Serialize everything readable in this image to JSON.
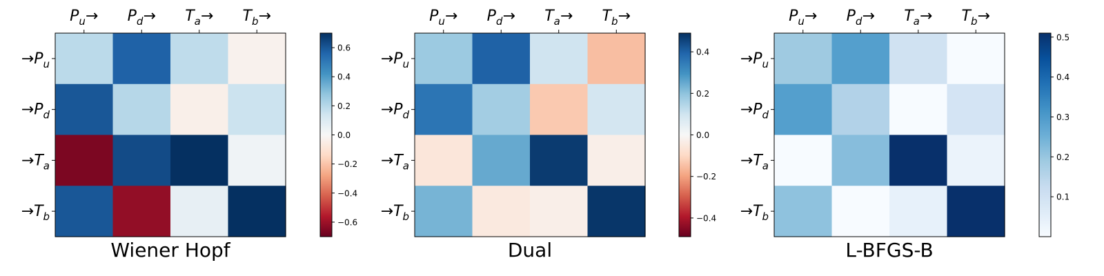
{
  "chart_data": [
    {
      "type": "heatmap",
      "title": "Wiener Hopf",
      "x_tick_labels": [
        {
          "base": "P",
          "sub": "u",
          "arrow": "→"
        },
        {
          "base": "P",
          "sub": "d",
          "arrow": "→"
        },
        {
          "base": "T",
          "sub": "a",
          "arrow": "→"
        },
        {
          "base": "T",
          "sub": "b",
          "arrow": "→"
        }
      ],
      "y_tick_labels": [
        {
          "base": "P",
          "sub": "u",
          "arrow": "→"
        },
        {
          "base": "P",
          "sub": "d",
          "arrow": "→"
        },
        {
          "base": "T",
          "sub": "a",
          "arrow": "→"
        },
        {
          "base": "T",
          "sub": "b",
          "arrow": "→"
        }
      ],
      "values": [
        [
          0.19,
          0.57,
          0.18,
          -0.03
        ],
        [
          0.6,
          0.2,
          -0.04,
          0.15
        ],
        [
          -0.66,
          0.63,
          0.7,
          0.03
        ],
        [
          0.6,
          -0.62,
          0.06,
          0.7
        ]
      ],
      "colormap": "RdBu",
      "vlim": [
        -0.7,
        0.7
      ],
      "colorbar_ticks": [
        -0.6,
        -0.4,
        -0.2,
        0.0,
        0.2,
        0.4,
        0.6
      ],
      "colorbar_tick_labels": [
        "−0.6",
        "−0.4",
        "−0.2",
        "0.0",
        "0.2",
        "0.4",
        "0.6"
      ]
    },
    {
      "type": "heatmap",
      "title": "Dual",
      "x_tick_labels": [
        {
          "base": "P",
          "sub": "u",
          "arrow": "→"
        },
        {
          "base": "P",
          "sub": "d",
          "arrow": "→"
        },
        {
          "base": "T",
          "sub": "a",
          "arrow": "→"
        },
        {
          "base": "T",
          "sub": "b",
          "arrow": "→"
        }
      ],
      "y_tick_labels": [
        {
          "base": "P",
          "sub": "u",
          "arrow": "→"
        },
        {
          "base": "P",
          "sub": "d",
          "arrow": "→"
        },
        {
          "base": "T",
          "sub": "a",
          "arrow": "→"
        },
        {
          "base": "T",
          "sub": "b",
          "arrow": "→"
        }
      ],
      "values": [
        [
          0.18,
          0.4,
          0.1,
          -0.15
        ],
        [
          0.36,
          0.17,
          -0.13,
          0.09
        ],
        [
          -0.06,
          0.25,
          0.47,
          -0.03
        ],
        [
          0.23,
          -0.05,
          -0.03,
          0.48
        ]
      ],
      "colormap": "RdBu",
      "vlim": [
        -0.49,
        0.49
      ],
      "colorbar_ticks": [
        -0.4,
        -0.2,
        0.0,
        0.2,
        0.4
      ],
      "colorbar_tick_labels": [
        "−0.4",
        "−0.2",
        "0.0",
        "0.2",
        "0.4"
      ]
    },
    {
      "type": "heatmap",
      "title": "L-BFGS-B",
      "x_tick_labels": [
        {
          "base": "P",
          "sub": "u",
          "arrow": "→"
        },
        {
          "base": "P",
          "sub": "d",
          "arrow": "→"
        },
        {
          "base": "T",
          "sub": "a",
          "arrow": "→"
        },
        {
          "base": "T",
          "sub": "b",
          "arrow": "→"
        }
      ],
      "y_tick_labels": [
        {
          "base": "P",
          "sub": "u",
          "arrow": "→"
        },
        {
          "base": "P",
          "sub": "d",
          "arrow": "→"
        },
        {
          "base": "T",
          "sub": "a",
          "arrow": "→"
        },
        {
          "base": "T",
          "sub": "b",
          "arrow": "→"
        }
      ],
      "values": [
        [
          0.19,
          0.29,
          0.1,
          0.0
        ],
        [
          0.29,
          0.16,
          0.0,
          0.09
        ],
        [
          0.0,
          0.22,
          0.51,
          0.03
        ],
        [
          0.21,
          0.0,
          0.04,
          0.51
        ]
      ],
      "colormap": "Blues",
      "vlim": [
        0.0,
        0.51
      ],
      "colorbar_ticks": [
        0.1,
        0.2,
        0.3,
        0.4,
        0.5
      ],
      "colorbar_tick_labels": [
        "0.1",
        "0.2",
        "0.3",
        "0.4",
        "0.5"
      ]
    }
  ]
}
